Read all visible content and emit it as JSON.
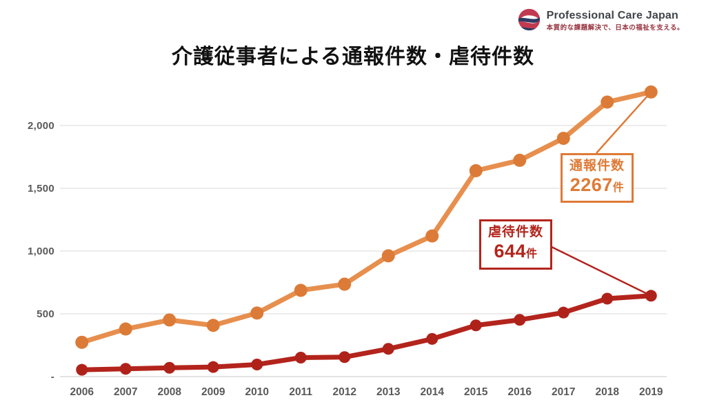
{
  "page": {
    "background": "#FFFFFF"
  },
  "logo": {
    "brand": "Professional Care Japan",
    "tagline": "本質的な課題解決で、日本の福祉を支える。",
    "icon": "swirl-globe-icon",
    "icon_red": "#C23A50",
    "icon_navy": "#2E3A63"
  },
  "title": "介護従事者による通報件数・虐待件数",
  "chart_data": {
    "type": "line",
    "title": "介護従事者による通報件数・虐待件数",
    "categories": [
      "2006",
      "2007",
      "2008",
      "2009",
      "2010",
      "2011",
      "2012",
      "2013",
      "2014",
      "2015",
      "2016",
      "2017",
      "2018",
      "2019"
    ],
    "series": [
      {
        "name": "通報件数",
        "line_color": "#E78F4E",
        "marker_color": "#DB7B37",
        "values": [
          273,
          379,
          451,
          408,
          506,
          687,
          736,
          962,
          1120,
          1640,
          1723,
          1898,
          2187,
          2267
        ]
      },
      {
        "name": "虐待件数",
        "line_color": "#B3241C",
        "marker_color": "#AF221A",
        "values": [
          54,
          62,
          70,
          76,
          96,
          151,
          155,
          221,
          300,
          408,
          452,
          510,
          621,
          644
        ]
      }
    ],
    "xlabel": "",
    "ylabel": "",
    "ylim": [
      0,
      2300
    ],
    "yticks": [
      0,
      500,
      1000,
      1500,
      2000
    ],
    "ytick_labels": [
      "-",
      "500",
      "1,000",
      "1,500",
      "2,000"
    ],
    "grid": true,
    "grid_color": "#D9D9D9",
    "axis_text_color": "#595959",
    "legend_position": "none"
  },
  "annotations": {
    "reports": {
      "label": "通報件数",
      "value": "2267",
      "unit": "件",
      "color": "#DF7A36"
    },
    "abuse": {
      "label": "虐待件数",
      "value": "644",
      "unit": "件",
      "color": "#B3241C"
    }
  }
}
